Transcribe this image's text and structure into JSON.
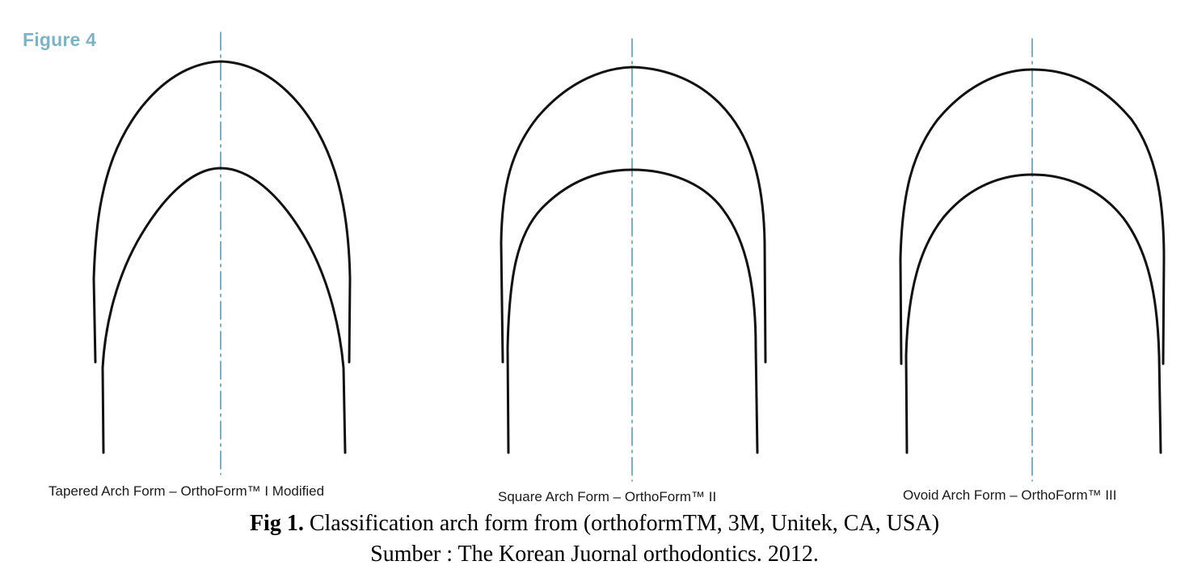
{
  "figure_label": "Figure 4",
  "arch_forms": [
    {
      "name": "tapered",
      "label": "Tapered Arch Form – OrthoForm™ I Modified"
    },
    {
      "name": "square",
      "label": "Square Arch Form – OrthoForm™ II"
    },
    {
      "name": "ovoid",
      "label": "Ovoid Arch Form – OrthoForm™ III"
    }
  ],
  "caption": {
    "prefix": "Fig 1.",
    "text": "Classification arch form from (orthoformTM, 3M, Unitek, CA, USA)",
    "source": "Sumber : The Korean Juornal orthodontics. 2012."
  },
  "colors": {
    "figure_label": "#7fb3c4",
    "centerline": "#5f8fa0",
    "arch_stroke": "#111111"
  }
}
